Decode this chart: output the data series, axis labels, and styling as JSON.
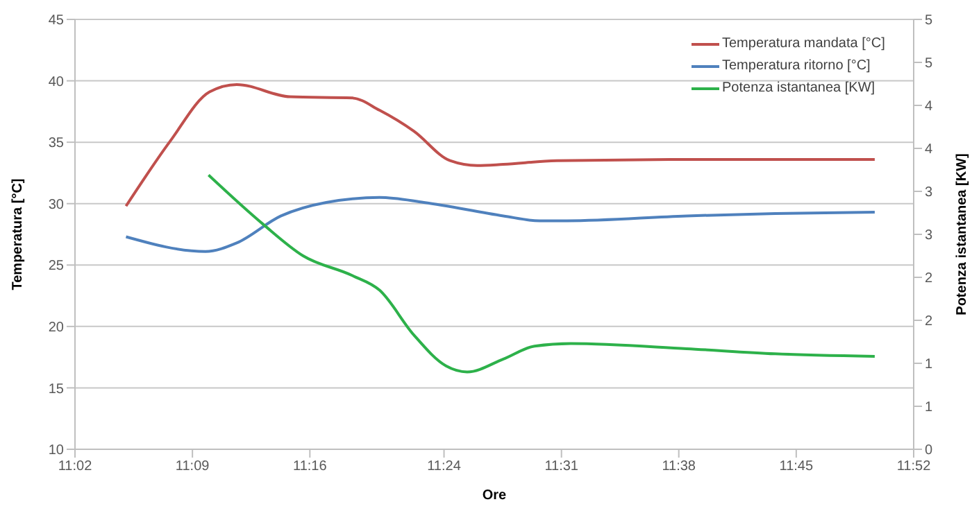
{
  "chart_data": {
    "type": "line",
    "xlabel": "Ore",
    "ylabel": "Temperatura [°C]",
    "y2label": "Potenza istantanea [KW]",
    "xlim": [
      11.0333,
      11.8667
    ],
    "xticks": [
      {
        "value": 11.0333,
        "label": "11:02"
      },
      {
        "value": 11.15,
        "label": "11:09"
      },
      {
        "value": 11.2667,
        "label": "11:16"
      },
      {
        "value": 11.4,
        "label": "11:24"
      },
      {
        "value": 11.5167,
        "label": "11:31"
      },
      {
        "value": 11.6333,
        "label": "11:38"
      },
      {
        "value": 11.75,
        "label": "11:45"
      },
      {
        "value": 11.8667,
        "label": "11:52"
      }
    ],
    "ylim": [
      10,
      45
    ],
    "yticks": [
      10,
      15,
      20,
      25,
      30,
      35,
      40,
      45
    ],
    "y2lim": [
      0,
      5
    ],
    "y2ticks": [
      0,
      {
        "value": 0.5,
        "label": "1"
      },
      1,
      {
        "value": 1.5,
        "label": "2"
      },
      2,
      {
        "value": 2.5,
        "label": "3"
      },
      3,
      {
        "value": 3.5,
        "label": "4"
      },
      4,
      {
        "value": 4.5,
        "label": "5"
      },
      5
    ],
    "grid": "y",
    "legend": "top right",
    "marker": "none",
    "line_style": "solid",
    "series": [
      {
        "name": "Temperatura mandata [°C]",
        "color": "#c0504d",
        "x": [
          11.084,
          11.128,
          11.167,
          11.194,
          11.247,
          11.309,
          11.336,
          11.37,
          11.406,
          11.433,
          11.459,
          11.512,
          11.645,
          11.778,
          11.828
        ],
        "values": [
          29.8,
          35.1,
          39.1,
          39.7,
          38.7,
          38.6,
          37.6,
          35.9,
          33.5,
          33.1,
          33.2,
          33.5,
          33.6,
          33.6,
          33.6
        ]
      },
      {
        "name": "Temperatura ritorno [°C]",
        "color": "#4f81bd",
        "x": [
          11.084,
          11.163,
          11.194,
          11.238,
          11.283,
          11.336,
          11.38,
          11.459,
          11.495,
          11.522,
          11.641,
          11.729,
          11.828
        ],
        "values": [
          27.3,
          26.1,
          26.8,
          29.0,
          30.1,
          30.5,
          30.1,
          29.0,
          28.6,
          28.6,
          29.0,
          29.2,
          29.3
        ]
      },
      {
        "name": "Potenza istantanea [KW]",
        "color": "#2db14a",
        "axis": "y2",
        "x": [
          11.166,
          11.22,
          11.26,
          11.309,
          11.336,
          11.37,
          11.402,
          11.423,
          11.459,
          11.49,
          11.526,
          11.641,
          11.729,
          11.828
        ],
        "values": [
          3.19,
          2.62,
          2.25,
          2.02,
          1.85,
          1.33,
          0.97,
          0.9,
          1.05,
          1.2,
          1.23,
          1.17,
          1.11,
          1.08
        ]
      }
    ]
  }
}
